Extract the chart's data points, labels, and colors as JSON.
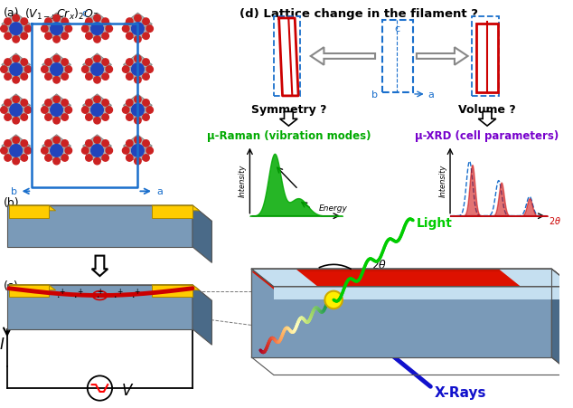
{
  "panel_a_label": "(a)",
  "panel_b_label": "(b)",
  "panel_c_label": "(c)",
  "panel_d_label": "(d) Lattice change in the filament ?",
  "symmetry_label": "Symmetry ?",
  "volume_label": "Volume ?",
  "raman_label": "μ-Raman (vibration modes)",
  "xrd_label": "μ-XRD (cell parameters)",
  "light_label": "Light",
  "xrays_label": "X-Rays",
  "bg_color": "#ffffff",
  "raman_color": "#00aa00",
  "xrd_color": "#7700cc",
  "xrays_color": "#1111cc",
  "light_color": "#00cc00",
  "red_color": "#cc0000",
  "blue_color": "#1a6fcc",
  "slab_top_color": "#c5dff0",
  "slab_front_color": "#7a9ab8",
  "slab_side_color": "#4a6a88",
  "yellow_color": "#ffcc00"
}
